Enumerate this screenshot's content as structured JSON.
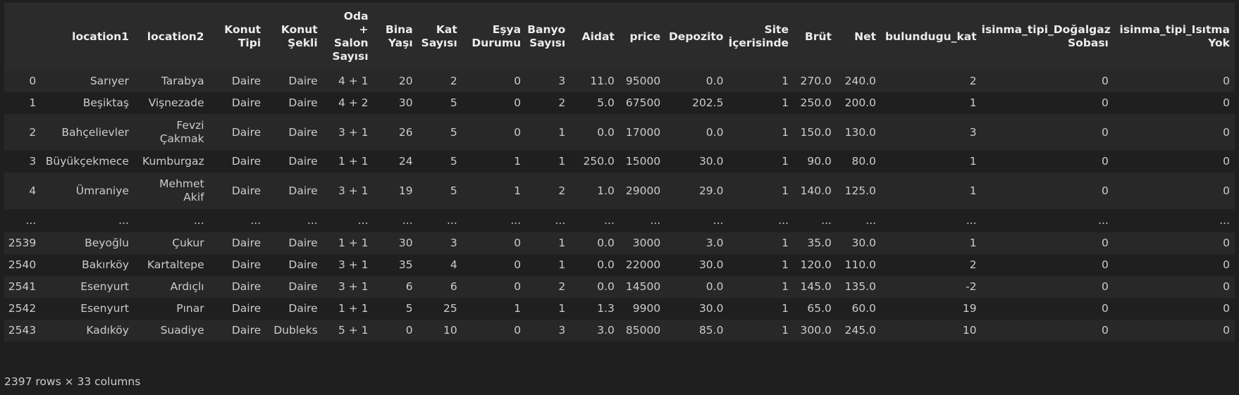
{
  "columns": [
    "",
    "location1",
    "location2",
    "Konut\nTipi",
    "Konut\nŞekli",
    "Oda\n+\nSalon\nSayısı",
    "Bina\nYaşı",
    "Kat\nSayısı",
    "Eşya\nDurumu",
    "Banyo\nSayısı",
    "Aidat",
    "price",
    "Depozito",
    "Site\nİçerisinde",
    "Brüt",
    "Net",
    "bulundugu_kat",
    "isinma_tipi_Doğalgaz\nSobası",
    "isinma_tipi_Isıtma\nYok"
  ],
  "rows": [
    [
      "0",
      "Sarıyer",
      "Tarabya",
      "Daire",
      "Daire",
      "4 + 1",
      "20",
      "2",
      "0",
      "3",
      "11.0",
      "95000",
      "0.0",
      "1",
      "270.0",
      "240.0",
      "2",
      "0",
      "0"
    ],
    [
      "1",
      "Beşiktaş",
      "Vişnezade",
      "Daire",
      "Daire",
      "4 + 2",
      "30",
      "5",
      "0",
      "2",
      "5.0",
      "67500",
      "202.5",
      "1",
      "250.0",
      "200.0",
      "1",
      "0",
      "0"
    ],
    [
      "2",
      "Bahçelievler",
      "Fevzi\nÇakmak",
      "Daire",
      "Daire",
      "3 + 1",
      "26",
      "5",
      "0",
      "1",
      "0.0",
      "17000",
      "0.0",
      "1",
      "150.0",
      "130.0",
      "3",
      "0",
      "0"
    ],
    [
      "3",
      "Büyükçekmece",
      "Kumburgaz",
      "Daire",
      "Daire",
      "1 + 1",
      "24",
      "5",
      "1",
      "1",
      "250.0",
      "15000",
      "30.0",
      "1",
      "90.0",
      "80.0",
      "1",
      "0",
      "0"
    ],
    [
      "4",
      "Ümraniye",
      "Mehmet\nAkif",
      "Daire",
      "Daire",
      "3 + 1",
      "19",
      "5",
      "1",
      "2",
      "1.0",
      "29000",
      "29.0",
      "1",
      "140.0",
      "125.0",
      "1",
      "0",
      "0"
    ],
    [
      "...",
      "...",
      "...",
      "...",
      "...",
      "...",
      "...",
      "...",
      "...",
      "...",
      "...",
      "...",
      "...",
      "...",
      "...",
      "...",
      "...",
      "...",
      "..."
    ],
    [
      "2539",
      "Beyoğlu",
      "Çukur",
      "Daire",
      "Daire",
      "1 + 1",
      "30",
      "3",
      "0",
      "1",
      "0.0",
      "3000",
      "3.0",
      "1",
      "35.0",
      "30.0",
      "1",
      "0",
      "0"
    ],
    [
      "2540",
      "Bakırköy",
      "Kartaltepe",
      "Daire",
      "Daire",
      "3 + 1",
      "35",
      "4",
      "0",
      "1",
      "0.0",
      "22000",
      "30.0",
      "1",
      "120.0",
      "110.0",
      "2",
      "0",
      "0"
    ],
    [
      "2541",
      "Esenyurt",
      "Ardıçlı",
      "Daire",
      "Daire",
      "3 + 1",
      "6",
      "6",
      "0",
      "2",
      "0.0",
      "14500",
      "0.0",
      "1",
      "145.0",
      "135.0",
      "-2",
      "0",
      "0"
    ],
    [
      "2542",
      "Esenyurt",
      "Pınar",
      "Daire",
      "Daire",
      "1 + 1",
      "5",
      "25",
      "1",
      "1",
      "1.3",
      "9900",
      "30.0",
      "1",
      "65.0",
      "60.0",
      "19",
      "0",
      "0"
    ],
    [
      "2543",
      "Kadıköy",
      "Suadiye",
      "Daire",
      "Dubleks",
      "5 + 1",
      "0",
      "10",
      "0",
      "3",
      "3.0",
      "85000",
      "85.0",
      "1",
      "300.0",
      "245.0",
      "10",
      "0",
      "0"
    ]
  ],
  "footer": "2397 rows × 33 columns",
  "colors": {
    "background": "#1f1f1f",
    "header_background": "#2b2b2b",
    "stripe": "#282828",
    "text": "#cccccc"
  }
}
